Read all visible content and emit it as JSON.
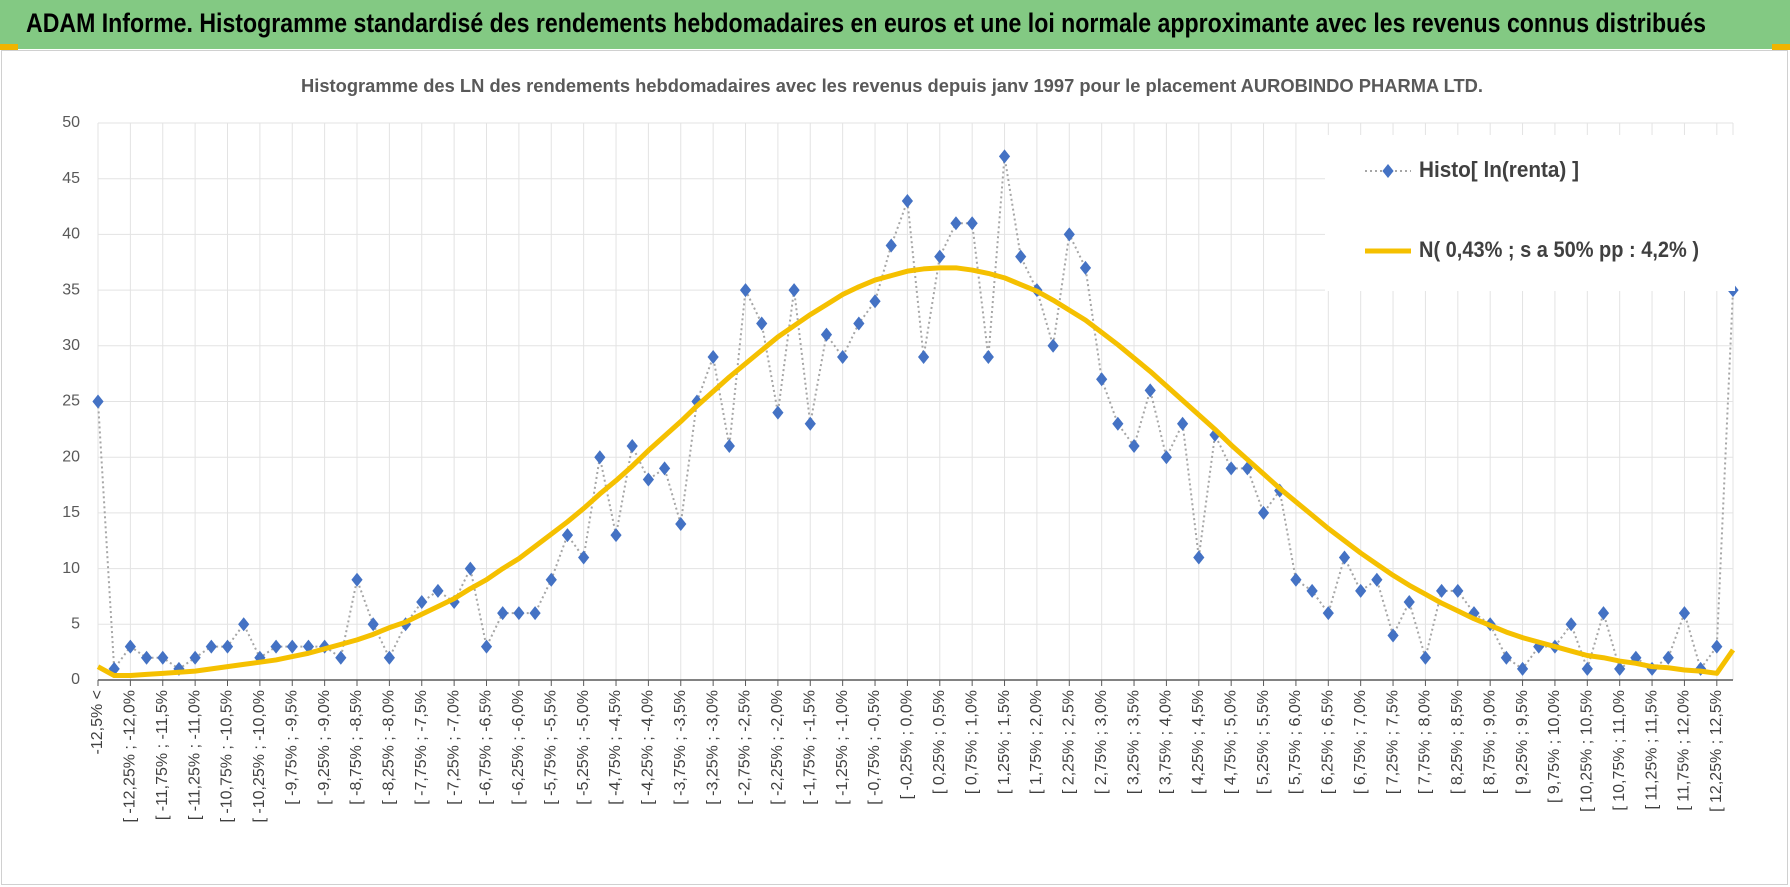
{
  "header": {
    "title": "ADAM Informe. Histogramme standardisé des rendements hebdomadaires en euros et une loi normale approximante avec les revenus connus distribués"
  },
  "chart_data": {
    "type": "line",
    "title": "Histogramme  des LN des rendements hebdomadaires avec les revenus depuis janv 1997 pour le placement AUROBINDO  PHARMA LTD.",
    "categories": [
      "-12,5% <",
      null,
      "[ -12,25% ; -12,0%",
      null,
      "[ -11,75% ; -11,5%",
      null,
      "[ -11,25% ; -11,0%",
      null,
      "[ -10,75% ; -10,5%",
      null,
      "[ -10,25% ; -10,0%",
      null,
      "[ -9,75% ; -9,5%",
      null,
      "[ -9,25% ; -9,0%",
      null,
      "[ -8,75% ; -8,5%",
      null,
      "[ -8,25% ; -8,0%",
      null,
      "[ -7,75% ; -7,5%",
      null,
      "[ -7,25% ; -7,0%",
      null,
      "[ -6,75% ; -6,5%",
      null,
      "[ -6,25% ; -6,0%",
      null,
      "[ -5,75% ; -5,5%",
      null,
      "[ -5,25% ; -5,0%",
      null,
      "[ -4,75% ; -4,5%",
      null,
      "[ -4,25% ; -4,0%",
      null,
      "[ -3,75% ; -3,5%",
      null,
      "[ -3,25% ; -3,0%",
      null,
      "[ -2,75% ; -2,5%",
      null,
      "[ -2,25% ; -2,0%",
      null,
      "[ -1,75% ; -1,5%",
      null,
      "[ -1,25% ; -1,0%",
      null,
      "[ -0,75% ; -0,5%",
      null,
      "[ -0,25% ; 0,0%",
      null,
      "[ 0,25% ; 0,5%",
      null,
      "[ 0,75% ; 1,0%",
      null,
      "[ 1,25% ; 1,5%",
      null,
      "[ 1,75% ; 2,0%",
      null,
      "[ 2,25% ; 2,5%",
      null,
      "[ 2,75% ; 3,0%",
      null,
      "[ 3,25% ; 3,5%",
      null,
      "[ 3,75% ; 4,0%",
      null,
      "[ 4,25% ; 4,5%",
      null,
      "[ 4,75% ; 5,0%",
      null,
      "[ 5,25% ; 5,5%",
      null,
      "[ 5,75% ; 6,0%",
      null,
      "[ 6,25% ; 6,5%",
      null,
      "[ 6,75% ; 7,0%",
      null,
      "[ 7,25% ; 7,5%",
      null,
      "[ 7,75% ; 8,0%",
      null,
      "[ 8,25% ; 8,5%",
      null,
      "[ 8,75% ; 9,0%",
      null,
      "[ 9,25% ; 9,5%",
      null,
      "[ 9,75% ; 10,0%",
      null,
      "[ 10,25% ; 10,5%",
      null,
      "[ 10,75% ; 11,0%",
      null,
      "[ 11,25% ; 11,5%",
      null,
      "[ 11,75% ; 12,0%",
      null,
      "[ 12,25% ; 12,5%",
      null
    ],
    "series": [
      {
        "name": "Histo[ ln(renta) ]",
        "color": "#4472c4",
        "line_color": "#a6a6a6",
        "line_style": "dotted",
        "marker": "diamond",
        "values": [
          25,
          1,
          3,
          2,
          2,
          1,
          2,
          3,
          3,
          5,
          2,
          3,
          3,
          3,
          3,
          2,
          9,
          5,
          2,
          5,
          7,
          8,
          7,
          10,
          3,
          6,
          6,
          6,
          9,
          13,
          11,
          20,
          13,
          21,
          18,
          19,
          14,
          25,
          29,
          21,
          35,
          32,
          24,
          35,
          23,
          31,
          29,
          32,
          34,
          39,
          43,
          29,
          38,
          41,
          41,
          29,
          47,
          38,
          35,
          30,
          40,
          37,
          27,
          23,
          21,
          26,
          20,
          23,
          11,
          22,
          19,
          19,
          15,
          17,
          9,
          8,
          6,
          11,
          8,
          9,
          4,
          7,
          2,
          8,
          8,
          6,
          5,
          2,
          1,
          3,
          3,
          5,
          1,
          6,
          1,
          2,
          1,
          2,
          6,
          1,
          3,
          35
        ]
      },
      {
        "name": "N( 0,43% ; s a 50% pp : 4,2% )",
        "color": "#f5c000",
        "line_style": "solid",
        "values": [
          1.2,
          0.4,
          0.4,
          0.5,
          0.6,
          0.7,
          0.8,
          1.0,
          1.2,
          1.4,
          1.6,
          1.8,
          2.1,
          2.4,
          2.8,
          3.2,
          3.6,
          4.1,
          4.7,
          5.2,
          5.9,
          6.6,
          7.3,
          8.2,
          9.0,
          10.0,
          10.9,
          12.0,
          13.1,
          14.2,
          15.4,
          16.7,
          17.9,
          19.2,
          20.6,
          21.9,
          23.2,
          24.6,
          25.9,
          27.2,
          28.4,
          29.6,
          30.8,
          31.8,
          32.8,
          33.7,
          34.6,
          35.3,
          35.9,
          36.3,
          36.7,
          36.9,
          37.0,
          37.0,
          36.8,
          36.5,
          36.1,
          35.5,
          34.9,
          34.1,
          33.2,
          32.3,
          31.2,
          30.1,
          28.9,
          27.7,
          26.4,
          25.1,
          23.8,
          22.5,
          21.1,
          19.8,
          18.5,
          17.2,
          16.0,
          14.8,
          13.6,
          12.5,
          11.4,
          10.4,
          9.4,
          8.5,
          7.7,
          6.9,
          6.2,
          5.5,
          4.9,
          4.3,
          3.8,
          3.4,
          3.0,
          2.6,
          2.2,
          2.0,
          1.7,
          1.5,
          1.2,
          1.1,
          0.9,
          0.8,
          0.6,
          2.7
        ]
      }
    ],
    "ylim": [
      0,
      50
    ],
    "yticks": [
      0,
      5,
      10,
      15,
      20,
      25,
      30,
      35,
      40,
      45,
      50
    ],
    "grid": true,
    "legend": "upper right"
  }
}
